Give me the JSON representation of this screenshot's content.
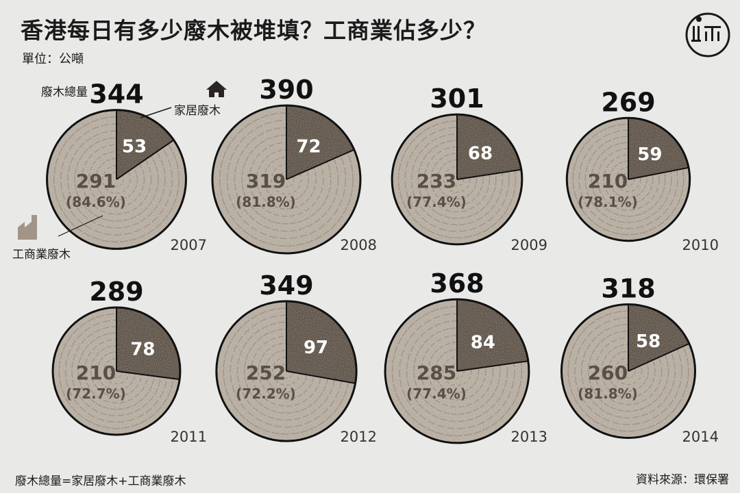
{
  "header": {
    "title": "香港每日有多少廢木被堆填？工商業佔多少？",
    "unit": "單位：公噸"
  },
  "annotations": {
    "total_label": "廢木總量",
    "household_label": "家居廢木",
    "commercial_label": "工商業廢木"
  },
  "footer": {
    "formula": "廢木總量=家居廢木+工商業廢木",
    "source": "資料來源：環保署"
  },
  "colors": {
    "household": "#4a3f37",
    "commercial": "#cbc2b7",
    "ring": "#6e6257",
    "background": "#e9e9e8"
  },
  "chart_data": {
    "type": "pie",
    "series_names": [
      "家居廢木",
      "工商業廢木"
    ],
    "charts": [
      {
        "year": "2007",
        "total": 344,
        "household": 53,
        "commercial": 291,
        "commercial_pct": "(84.6%)"
      },
      {
        "year": "2008",
        "total": 390,
        "household": 72,
        "commercial": 319,
        "commercial_pct": "(81.8%)"
      },
      {
        "year": "2009",
        "total": 301,
        "household": 68,
        "commercial": 233,
        "commercial_pct": "(77.4%)"
      },
      {
        "year": "2010",
        "total": 269,
        "household": 59,
        "commercial": 210,
        "commercial_pct": "(78.1%)"
      },
      {
        "year": "2011",
        "total": 289,
        "household": 78,
        "commercial": 210,
        "commercial_pct": "(72.7%)"
      },
      {
        "year": "2012",
        "total": 349,
        "household": 97,
        "commercial": 252,
        "commercial_pct": "(72.2%)"
      },
      {
        "year": "2013",
        "total": 368,
        "household": 84,
        "commercial": 285,
        "commercial_pct": "(77.4%)"
      },
      {
        "year": "2014",
        "total": 318,
        "household": 58,
        "commercial": 260,
        "commercial_pct": "(81.8%)"
      }
    ]
  }
}
